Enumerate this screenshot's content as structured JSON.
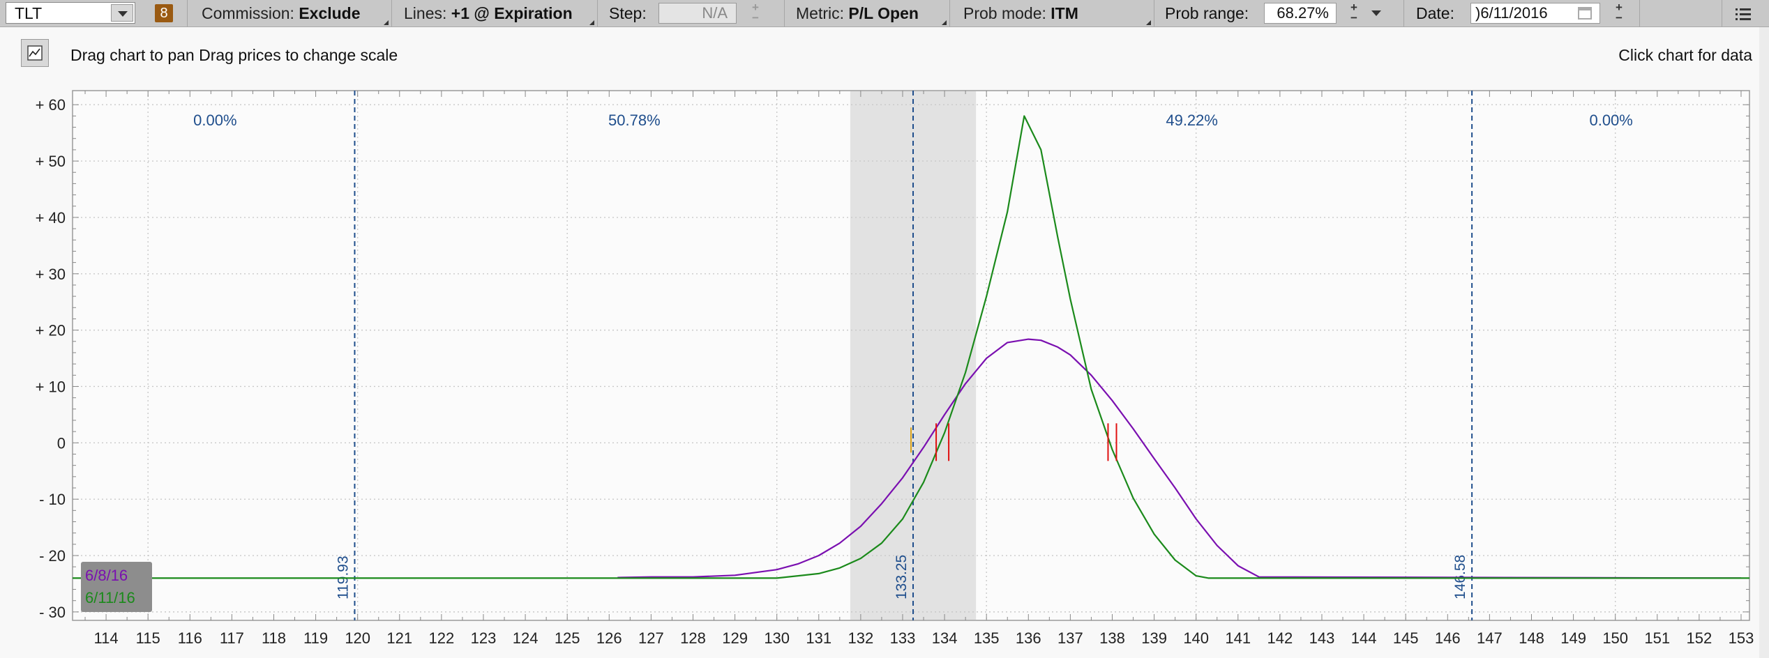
{
  "toolbar": {
    "symbol": "TLT",
    "badge": "8",
    "commission_label": "Commission:",
    "commission_value": "Exclude",
    "lines_label": "Lines:",
    "lines_value": "+1 @ Expiration",
    "step_label": "Step:",
    "step_value": "N/A",
    "metric_label": "Metric:",
    "metric_value": "P/L Open",
    "prob_mode_label": "Prob mode:",
    "prob_mode_value": "ITM",
    "prob_range_label": "Prob range:",
    "prob_range_value": "68.27%",
    "date_label": "Date:",
    "date_value": ")6/11/2016"
  },
  "info": {
    "hint": "Drag chart to pan Drag prices to change scale",
    "click_hint": "Click chart for data"
  },
  "icons": {
    "chart_mode": "chart-icon",
    "symbol_dropdown": "chevron-down-icon",
    "calendar": "calendar-icon",
    "menu": "list-menu-icon"
  },
  "colors": {
    "series_purple": "#7a0fb0",
    "series_green": "#1b8a1b",
    "prob_line": "#1f4e8c",
    "breakeven": "#e01010",
    "shade": "#e2e2e2"
  },
  "chart_data": {
    "type": "line",
    "x_range": [
      113.2,
      153.2
    ],
    "y_range": [
      -31.5,
      62.5
    ],
    "x_ticks": [
      114,
      115,
      116,
      117,
      118,
      119,
      120,
      121,
      122,
      123,
      124,
      125,
      126,
      127,
      128,
      129,
      130,
      131,
      132,
      133,
      134,
      135,
      136,
      137,
      138,
      139,
      140,
      141,
      142,
      143,
      144,
      145,
      146,
      147,
      148,
      149,
      150,
      151,
      152,
      153
    ],
    "y_ticks": [
      60,
      50,
      40,
      30,
      20,
      10,
      0,
      -10,
      -20,
      -30
    ],
    "y_tick_labels": [
      "+ 60",
      "+ 50",
      "+ 40",
      "+ 30",
      "+ 20",
      "+ 10",
      "0",
      "- 10",
      "- 20",
      "- 30"
    ],
    "grid": true,
    "shaded_range": [
      131.75,
      134.75
    ],
    "prob_lines": [
      {
        "x": 119.93,
        "label": "119.93"
      },
      {
        "x": 133.25,
        "label": "133.25"
      },
      {
        "x": 146.58,
        "label": "146.58"
      }
    ],
    "zone_labels": [
      {
        "x": 116.6,
        "text": "0.00%"
      },
      {
        "x": 126.6,
        "text": "50.78%"
      },
      {
        "x": 139.9,
        "text": "49.22%"
      },
      {
        "x": 149.9,
        "text": "0.00%"
      }
    ],
    "breakeven_marks": [
      133.8,
      134.1,
      137.9,
      138.1
    ],
    "current_price": 133.2,
    "series": [
      {
        "name": "6/8/16",
        "x": [
          126.2,
          127,
          128,
          129,
          130,
          130.5,
          131,
          131.5,
          132,
          132.5,
          133,
          133.5,
          134,
          134.5,
          135,
          135.5,
          136,
          136.3,
          136.7,
          137,
          137.5,
          138,
          138.5,
          139,
          139.5,
          140,
          140.5,
          141,
          141.5,
          153
        ],
        "y": [
          -23.9,
          -23.8,
          -23.8,
          -23.5,
          -22.5,
          -21.5,
          -20,
          -17.8,
          -14.8,
          -10.8,
          -6.2,
          -0.8,
          5,
          10.5,
          15,
          17.8,
          18.4,
          18.2,
          17,
          15.6,
          12,
          7.5,
          2.5,
          -2.8,
          -8,
          -13.5,
          -18.2,
          -21.8,
          -23.8,
          -24
        ]
      },
      {
        "name": "6/11/16",
        "x": [
          113.2,
          129,
          130,
          131,
          131.5,
          132,
          132.5,
          133,
          133.5,
          134,
          134.5,
          135,
          135.5,
          135.9,
          136.3,
          136.7,
          137,
          137.5,
          138,
          138.5,
          139,
          139.5,
          140,
          140.3,
          153.2
        ],
        "y": [
          -24,
          -24,
          -24,
          -23.2,
          -22.2,
          -20.5,
          -17.8,
          -13.5,
          -7,
          1.8,
          12.5,
          26,
          41,
          58,
          52,
          36.5,
          25.5,
          9.5,
          -1.2,
          -9.8,
          -16.2,
          -20.8,
          -23.6,
          -24,
          -24
        ]
      }
    ],
    "legend_position": "bottom-left"
  }
}
